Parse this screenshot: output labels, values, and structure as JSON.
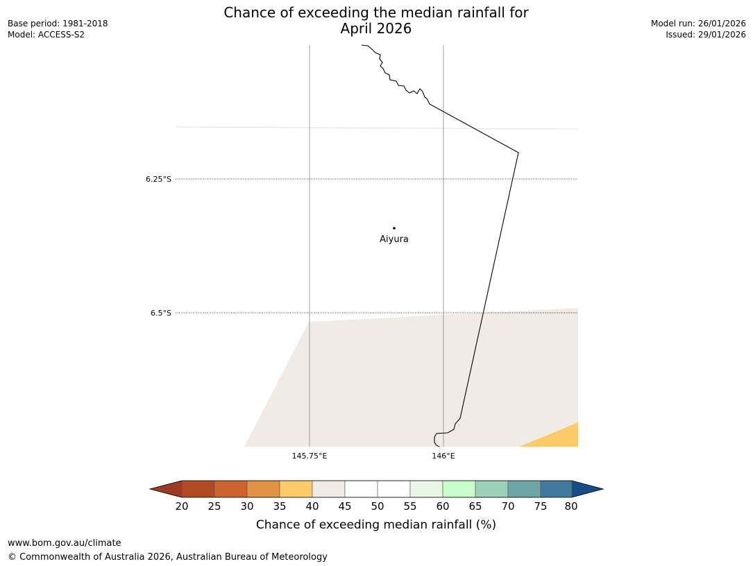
{
  "header": {
    "title_line1": "Chance of exceeding the median rainfall for",
    "title_line2": "April 2026",
    "base_period": "Base period: 1981-2018",
    "model": "Model: ACCESS-S2",
    "model_run": "Model run: 26/01/2026",
    "issued": "Issued: 29/01/2026"
  },
  "map": {
    "lat_labels": [
      "6.25°S",
      "6.5°S"
    ],
    "lon_labels": [
      "145.75°E",
      "146°E"
    ],
    "place_label": "Aiyura",
    "colors": {
      "neutral_band": "#f0ebe5",
      "band_35_40": "#fdca69",
      "boundary": "#000000",
      "grid": "#888888"
    }
  },
  "legend": {
    "title": "Chance of exceeding median rainfall (%)",
    "ticks": [
      "20",
      "25",
      "30",
      "35",
      "40",
      "45",
      "50",
      "55",
      "60",
      "65",
      "70",
      "75",
      "80"
    ],
    "colors": [
      "#9c3a22",
      "#b24a24",
      "#cd6430",
      "#e29245",
      "#fdca69",
      "#f0ebe5",
      "#ffffff",
      "#ffffff",
      "#eaf7e8",
      "#c8fccb",
      "#9dd0b8",
      "#6ea6a8",
      "#417a9c",
      "#174d86"
    ]
  },
  "footer": {
    "url": "www.bom.gov.au/climate",
    "copyright": "© Commonwealth of Australia 2026, Australian Bureau of Meteorology"
  }
}
